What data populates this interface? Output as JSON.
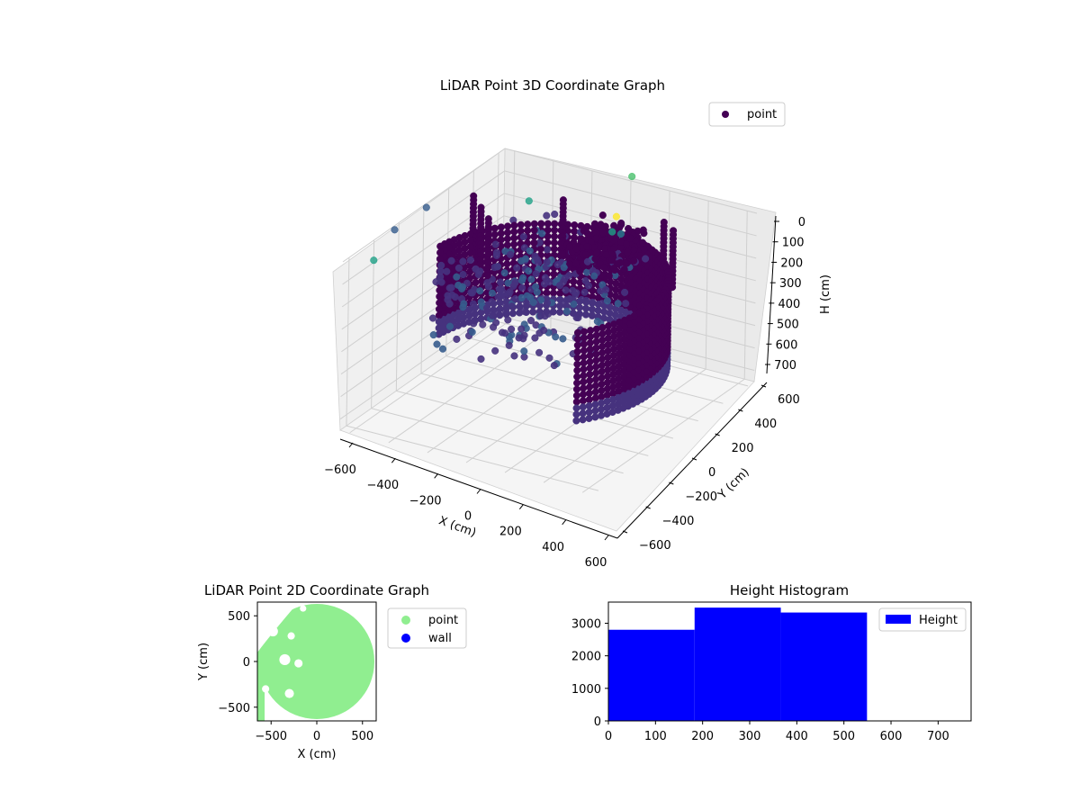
{
  "chart_data": [
    {
      "type": "scatter",
      "projection": "3d",
      "title": "LiDAR Point 3D Coordinate Graph",
      "xlabel": "X (cm)",
      "ylabel": "Y (cm)",
      "zlabel": "H (cm)",
      "xticks": [
        -600,
        -400,
        -200,
        0,
        200,
        400,
        600
      ],
      "yticks": [
        -600,
        -400,
        -200,
        0,
        200,
        400,
        600
      ],
      "zticks": [
        0,
        100,
        200,
        300,
        400,
        500,
        600,
        700
      ],
      "xlim": [
        -650,
        650
      ],
      "ylim": [
        -650,
        650
      ],
      "zlim": [
        0,
        750
      ],
      "z_axis_inverted": true,
      "colormap": "viridis",
      "grid": true,
      "legend": {
        "entries": [
          "point"
        ],
        "position": "top-right"
      },
      "series": [
        {
          "name": "point",
          "color": "#440154"
        }
      ]
    },
    {
      "type": "scatter",
      "title": "LiDAR Point 2D Coordinate Graph",
      "xlabel": "X (cm)",
      "ylabel": "Y (cm)",
      "xticks": [
        -500,
        0,
        500
      ],
      "yticks": [
        -500,
        0,
        500
      ],
      "xlim": [
        -650,
        650
      ],
      "ylim": [
        -650,
        650
      ],
      "legend": {
        "entries": [
          "point",
          "wall"
        ],
        "position": "outside-right"
      },
      "series": [
        {
          "name": "point",
          "color": "#90ee90"
        },
        {
          "name": "wall",
          "color": "#0000ff"
        }
      ]
    },
    {
      "type": "bar",
      "title": "Height Histogram",
      "xticks": [
        0,
        100,
        200,
        300,
        400,
        500,
        600,
        700
      ],
      "yticks": [
        0,
        1000,
        2000,
        3000
      ],
      "xlim": [
        0,
        770
      ],
      "ylim": [
        0,
        3650
      ],
      "legend": {
        "entries": [
          "Height"
        ],
        "position": "top-right"
      },
      "series": [
        {
          "name": "Height",
          "color": "#0000ff"
        }
      ],
      "bins": [
        {
          "x0": 0,
          "x1": 183,
          "count": 2800
        },
        {
          "x0": 183,
          "x1": 366,
          "count": 3480
        },
        {
          "x0": 366,
          "x1": 549,
          "count": 3330
        },
        {
          "x0": 549,
          "x1": 732,
          "count": 0
        }
      ]
    }
  ]
}
